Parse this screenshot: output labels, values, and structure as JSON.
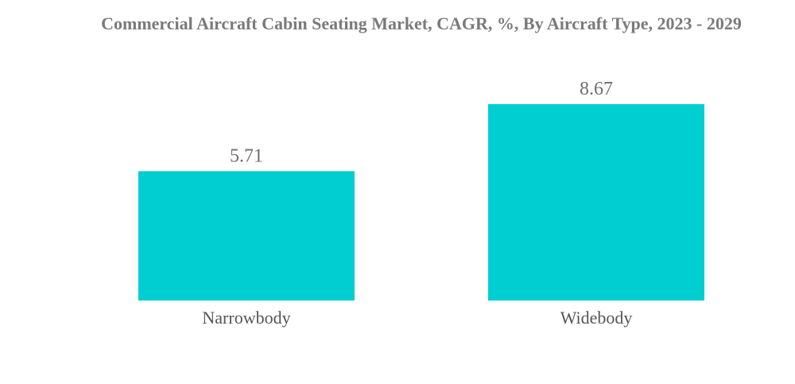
{
  "chart_data": {
    "type": "bar",
    "title": "Commercial Aircraft Cabin Seating Market, CAGR, %, By Aircraft Type, 2023 - 2029",
    "categories": [
      "Narrowbody",
      "Widebody"
    ],
    "values": [
      5.71,
      8.67
    ],
    "value_labels": [
      "5.71",
      "8.67"
    ],
    "xlabel": "",
    "ylabel": "",
    "ylim": [
      0,
      8.67
    ],
    "grid": false,
    "legend": "none",
    "bar_color": "#00CED1"
  }
}
